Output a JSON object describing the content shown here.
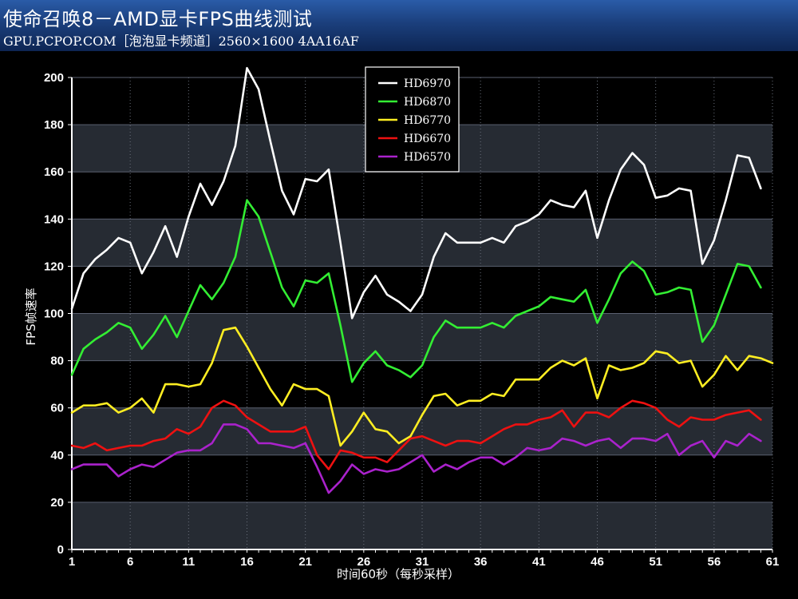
{
  "header": {
    "title": "使命召唤8－AMD显卡FPS曲线测试",
    "subtitle": "GPU.PCPOP.COM［泡泡显卡频道］2560×1600 4AA16AF"
  },
  "chart_data": {
    "type": "line",
    "xlabel": "时间60秒（每秒采样）",
    "ylabel": "FPS帧速率",
    "xlim": [
      1,
      61
    ],
    "ylim": [
      0,
      200
    ],
    "x_ticks": [
      1,
      6,
      11,
      16,
      21,
      26,
      31,
      36,
      41,
      46,
      51,
      56,
      61
    ],
    "y_ticks": [
      0,
      20,
      40,
      60,
      80,
      100,
      120,
      140,
      160,
      180,
      200
    ],
    "grid": true,
    "legend_position": "top-center",
    "series": [
      {
        "name": "HD6970",
        "color": "#ffffff",
        "values": [
          102,
          117,
          123,
          127,
          132,
          130,
          117,
          126,
          137,
          124,
          141,
          155,
          146,
          156,
          171,
          204,
          195,
          173,
          152,
          142,
          157,
          156,
          161,
          130,
          98,
          109,
          116,
          108,
          105,
          101,
          108,
          124,
          134,
          130,
          130,
          130,
          132,
          130,
          137,
          139,
          142,
          148,
          146,
          145,
          152,
          132,
          148,
          161,
          168,
          163,
          149,
          150,
          153,
          152,
          121,
          131,
          148,
          167,
          166,
          153
        ]
      },
      {
        "name": "HD6870",
        "color": "#33ee33",
        "values": [
          74,
          85,
          89,
          92,
          96,
          94,
          85,
          91,
          99,
          90,
          101,
          112,
          106,
          113,
          124,
          148,
          141,
          126,
          111,
          103,
          114,
          113,
          117,
          95,
          71,
          79,
          84,
          78,
          76,
          73,
          78,
          90,
          97,
          94,
          94,
          94,
          96,
          94,
          99,
          101,
          103,
          107,
          106,
          105,
          110,
          96,
          106,
          117,
          122,
          118,
          108,
          109,
          111,
          110,
          88,
          95,
          108,
          121,
          120,
          111
        ]
      },
      {
        "name": "HD6770",
        "color": "#ffee22",
        "values": [
          58,
          61,
          61,
          62,
          58,
          60,
          64,
          58,
          70,
          70,
          69,
          70,
          79,
          93,
          94,
          86,
          77,
          68,
          61,
          70,
          68,
          68,
          65,
          44,
          50,
          58,
          51,
          50,
          45,
          48,
          57,
          65,
          66,
          61,
          63,
          63,
          66,
          65,
          72,
          72,
          72,
          77,
          80,
          78,
          81,
          64,
          78,
          76,
          77,
          79,
          84,
          83,
          79,
          80,
          69,
          74,
          82,
          76,
          82,
          81,
          79
        ]
      },
      {
        "name": "HD6670",
        "color": "#ee1111",
        "values": [
          44,
          43,
          45,
          42,
          43,
          44,
          44,
          46,
          47,
          51,
          49,
          52,
          60,
          63,
          61,
          56,
          53,
          50,
          50,
          50,
          52,
          40,
          34,
          42,
          41,
          39,
          39,
          37,
          42,
          47,
          48,
          46,
          44,
          46,
          46,
          45,
          48,
          51,
          53,
          53,
          55,
          56,
          59,
          52,
          58,
          58,
          56,
          60,
          63,
          62,
          60,
          55,
          52,
          56,
          55,
          55,
          57,
          58,
          59,
          55
        ]
      },
      {
        "name": "HD6570",
        "color": "#aa22cc",
        "values": [
          34,
          36,
          36,
          36,
          31,
          34,
          36,
          35,
          38,
          41,
          42,
          42,
          45,
          53,
          53,
          51,
          45,
          45,
          44,
          43,
          45,
          35,
          24,
          29,
          36,
          32,
          34,
          33,
          34,
          37,
          40,
          33,
          36,
          34,
          37,
          39,
          39,
          36,
          39,
          43,
          42,
          43,
          47,
          46,
          44,
          46,
          47,
          43,
          47,
          47,
          46,
          49,
          40,
          44,
          46,
          39,
          46,
          44,
          49,
          46
        ]
      }
    ]
  }
}
